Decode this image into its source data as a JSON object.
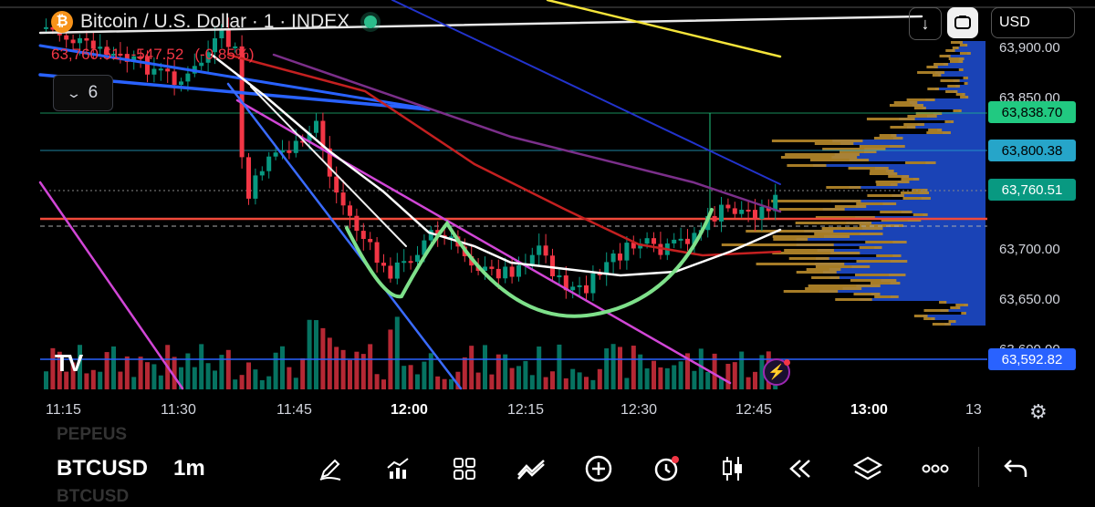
{
  "header": {
    "symbol_icon": "bitcoin-icon",
    "logo_glyph": "₿",
    "title": "Bitcoin / U.S. Dollar · 1 · INDEX",
    "price": "63,760.51",
    "change": "-547.52",
    "change_pct": "(-0.85%)",
    "indicators_count": "6"
  },
  "top_right": {
    "scroll_icon": "arrow-down-icon",
    "snapshot_icon": "camera-icon",
    "currency": "USD"
  },
  "y_axis": {
    "ticks": [
      "63,900.00",
      "63,850.00",
      "63,700.00",
      "63,650.00",
      "63,600.00"
    ],
    "labels": [
      {
        "value": "63,838.70",
        "bg": "#21c981",
        "fg": "#000000"
      },
      {
        "value": "63,800.38",
        "bg": "#26a5c9",
        "fg": "#000000"
      },
      {
        "value": "63,760.51",
        "bg": "#089981",
        "fg": "#ffffff"
      },
      {
        "value": "63,592.82",
        "bg": "#2962ff",
        "fg": "#ffffff"
      }
    ]
  },
  "x_axis": {
    "ticks": [
      "11:15",
      "11:30",
      "11:45",
      "12:00",
      "12:15",
      "12:30",
      "12:45",
      "13:00",
      "13"
    ],
    "bold": [
      "12:00",
      "13:00"
    ]
  },
  "watermark": "TV",
  "bottom": {
    "ghost_above": "PEPEUS",
    "symbol": "BTCUSD",
    "interval": "1m",
    "ghost_below": "BTCUSD",
    "tools": [
      "pencil-icon",
      "chart-indicator-icon",
      "grid-icon",
      "trend-line-icon",
      "plus-icon",
      "alert-clock-icon",
      "candles-icon",
      "rewind-icon",
      "layers-icon",
      "more-icon",
      "undo-icon"
    ]
  },
  "colors": {
    "up": "#089981",
    "down": "#f23645",
    "bg": "#000000"
  }
}
